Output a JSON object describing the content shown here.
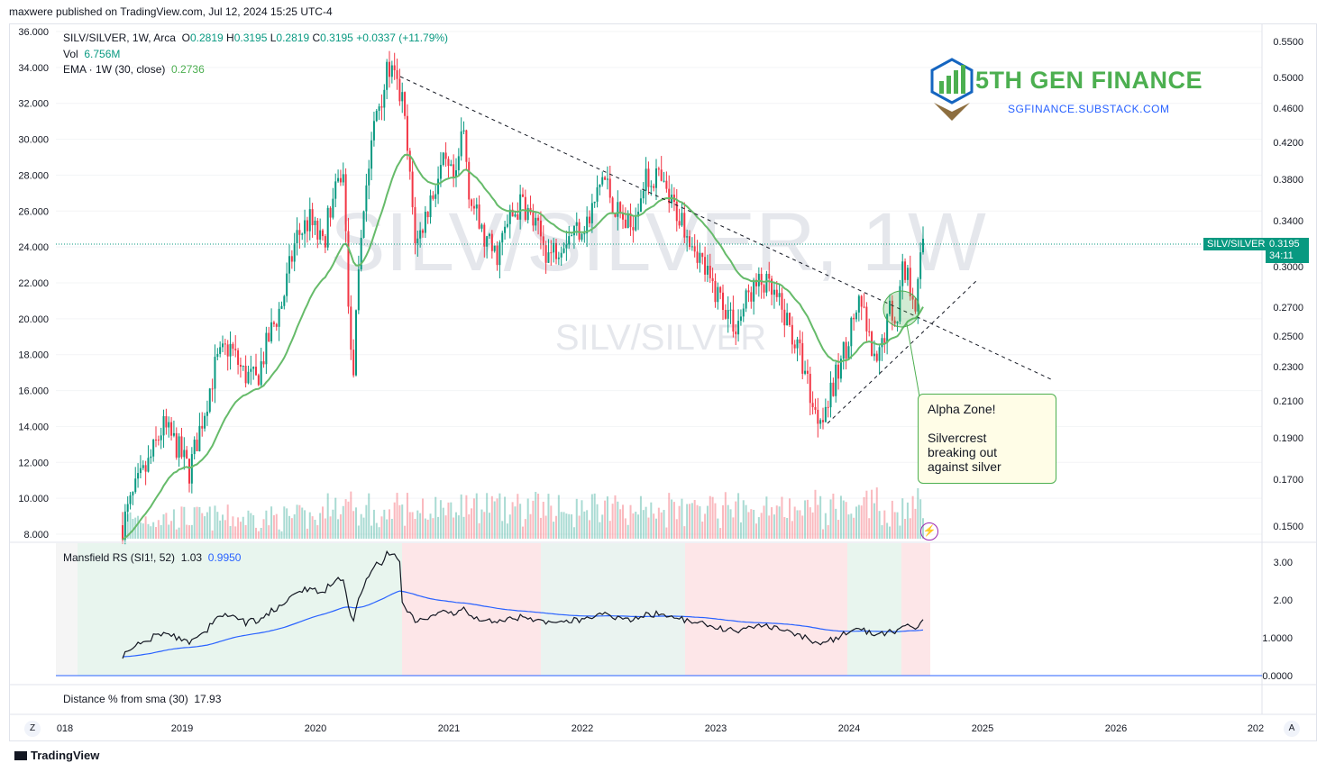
{
  "header": {
    "published_line": "maxwere published on TradingView.com, Jul 12, 2024 15:25 UTC-4"
  },
  "watermark": {
    "big": "SILV/SILVER, 1W",
    "small": "SILV/SILVER"
  },
  "legend": {
    "symbol": "SILV/SILVER, 1W, Arca",
    "o_label": "O",
    "o": "0.2819",
    "h_label": "H",
    "h": "0.3195",
    "l_label": "L",
    "l": "0.2819",
    "c_label": "C",
    "c": "0.3195",
    "chg": "+0.0337 (+11.79%)",
    "vol_label": "Vol",
    "vol": "6.756M",
    "ema_label": "EMA · 1W (30, close)",
    "ema": "0.2736",
    "mrs_label": "Mansfield RS (SI1!, 52)",
    "mrs1": "1.03",
    "mrs2": "0.9950",
    "dist_label": "Distance % from sma (30)",
    "dist": "17.93"
  },
  "logo": {
    "title": "5TH GEN FINANCE",
    "sub": "SGFINANCE.SUBSTACK.COM"
  },
  "annotation": {
    "line1": "Alpha Zone!",
    "line2": "Silvercrest",
    "line3": "breaking out",
    "line4": "against silver"
  },
  "price_tag": {
    "symbol": "SILV/SILVER",
    "price": "0.3195",
    "countdown": "34:11"
  },
  "footer": {
    "brand": "TradingView",
    "z": "Z",
    "a": "A"
  },
  "colors": {
    "up": "#089981",
    "down": "#f23645",
    "ema": "#66bb6a",
    "mrs": "#131722",
    "mrs_ma": "#2962ff"
  },
  "chart_data": {
    "type": "candlestick",
    "left_axis_ticks": [
      "36.000",
      "34.000",
      "32.000",
      "30.000",
      "28.000",
      "26.000",
      "24.000",
      "22.000",
      "20.000",
      "18.000",
      "16.000",
      "14.000",
      "12.000",
      "10.000",
      "8.000"
    ],
    "right_axis_ticks": [
      "0.5500",
      "0.5000",
      "0.4600",
      "0.4200",
      "0.3800",
      "0.3400",
      "0.3000",
      "0.2700",
      "0.2500",
      "0.2300",
      "0.2100",
      "0.1900",
      "0.1700",
      "0.1500"
    ],
    "rs_axis_ticks": [
      "3.00",
      "2.00",
      "1.0000",
      "0.0000"
    ],
    "x_ticks": [
      "018",
      "2019",
      "2020",
      "2021",
      "2022",
      "2023",
      "2024",
      "2025",
      "2026",
      "202"
    ],
    "close_path": [
      [
        2018.5,
        8.5
      ],
      [
        2018.6,
        10.5
      ],
      [
        2018.7,
        12.0
      ],
      [
        2018.8,
        14.0
      ],
      [
        2018.9,
        13.0
      ],
      [
        2019.0,
        11.5
      ],
      [
        2019.1,
        14.5
      ],
      [
        2019.2,
        17.5
      ],
      [
        2019.3,
        18.5
      ],
      [
        2019.4,
        17.0
      ],
      [
        2019.5,
        16.5
      ],
      [
        2019.6,
        19.0
      ],
      [
        2019.7,
        21.0
      ],
      [
        2019.8,
        24.5
      ],
      [
        2019.9,
        25.5
      ],
      [
        2020.0,
        24.0
      ],
      [
        2020.05,
        26.0
      ],
      [
        2020.1,
        27.0
      ],
      [
        2020.15,
        28.5
      ],
      [
        2020.2,
        20.0
      ],
      [
        2020.22,
        16.0
      ],
      [
        2020.3,
        26.0
      ],
      [
        2020.4,
        31.5
      ],
      [
        2020.5,
        34.0
      ],
      [
        2020.55,
        33.0
      ],
      [
        2020.6,
        32.0
      ],
      [
        2020.65,
        28.0
      ],
      [
        2020.7,
        24.0
      ],
      [
        2020.8,
        26.5
      ],
      [
        2020.9,
        28.5
      ],
      [
        2021.0,
        27.5
      ],
      [
        2021.05,
        31.0
      ],
      [
        2021.1,
        27.0
      ],
      [
        2021.2,
        24.5
      ],
      [
        2021.3,
        23.5
      ],
      [
        2021.4,
        25.5
      ],
      [
        2021.5,
        26.5
      ],
      [
        2021.6,
        25.0
      ],
      [
        2021.7,
        23.5
      ],
      [
        2021.8,
        24.5
      ],
      [
        2021.9,
        25.0
      ],
      [
        2022.0,
        25.5
      ],
      [
        2022.1,
        28.0
      ],
      [
        2022.2,
        26.0
      ],
      [
        2022.3,
        25.0
      ],
      [
        2022.4,
        27.5
      ],
      [
        2022.5,
        28.0
      ],
      [
        2022.6,
        26.5
      ],
      [
        2022.7,
        25.5
      ],
      [
        2022.8,
        24.0
      ],
      [
        2022.9,
        22.0
      ],
      [
        2023.0,
        21.0
      ],
      [
        2023.1,
        19.5
      ],
      [
        2023.2,
        21.5
      ],
      [
        2023.3,
        22.0
      ],
      [
        2023.4,
        21.0
      ],
      [
        2023.5,
        19.5
      ],
      [
        2023.6,
        17.5
      ],
      [
        2023.7,
        14.5
      ],
      [
        2023.8,
        15.5
      ],
      [
        2023.9,
        18.0
      ],
      [
        2024.0,
        20.5
      ],
      [
        2024.05,
        20.5
      ],
      [
        2024.1,
        18.5
      ],
      [
        2024.15,
        17.0
      ],
      [
        2024.2,
        19.0
      ],
      [
        2024.25,
        20.5
      ],
      [
        2024.3,
        20.0
      ],
      [
        2024.35,
        23.0
      ],
      [
        2024.4,
        22.0
      ],
      [
        2024.45,
        21.0
      ],
      [
        2024.5,
        24.5
      ]
    ]
  }
}
